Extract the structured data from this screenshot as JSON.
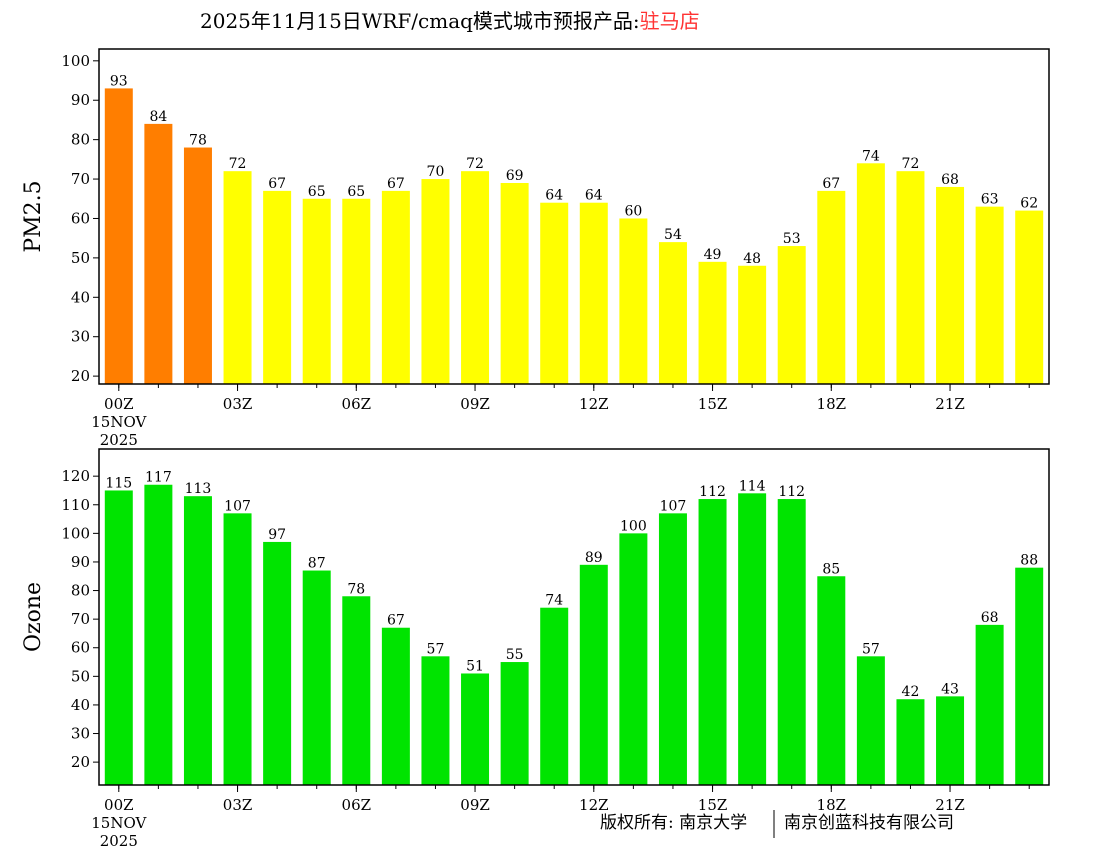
{
  "title": {
    "main": "2025年11月15日WRF/cmaq模式城市预报产品:",
    "city": "驻马店",
    "city_color": "#ff3333"
  },
  "footer": {
    "left": "版权所有: 南京大学",
    "right": "南京创蓝科技有限公司"
  },
  "chart_data": [
    {
      "type": "bar",
      "ylabel": "PM2.5",
      "ylim": [
        18,
        103
      ],
      "yticks": [
        20,
        30,
        40,
        50,
        60,
        70,
        80,
        90,
        100
      ],
      "xtick_labels": [
        "00Z",
        "03Z",
        "06Z",
        "09Z",
        "12Z",
        "15Z",
        "18Z",
        "21Z"
      ],
      "xtick_indices": [
        0,
        3,
        6,
        9,
        12,
        15,
        18,
        21
      ],
      "date_label": [
        "15NOV",
        "2025"
      ],
      "values": [
        93,
        84,
        78,
        72,
        67,
        65,
        65,
        67,
        70,
        72,
        69,
        64,
        64,
        60,
        54,
        49,
        48,
        53,
        67,
        74,
        72,
        68,
        63,
        62
      ],
      "colors": [
        "#ff7e00",
        "#ff7e00",
        "#ff7e00",
        "#ffff00",
        "#ffff00",
        "#ffff00",
        "#ffff00",
        "#ffff00",
        "#ffff00",
        "#ffff00",
        "#ffff00",
        "#ffff00",
        "#ffff00",
        "#ffff00",
        "#ffff00",
        "#ffff00",
        "#ffff00",
        "#ffff00",
        "#ffff00",
        "#ffff00",
        "#ffff00",
        "#ffff00",
        "#ffff00",
        "#ffff00"
      ]
    },
    {
      "type": "bar",
      "ylabel": "Ozone",
      "ylim": [
        12,
        129.5
      ],
      "yticks": [
        20,
        30,
        40,
        50,
        60,
        70,
        80,
        90,
        100,
        110,
        120
      ],
      "xtick_labels": [
        "00Z",
        "03Z",
        "06Z",
        "09Z",
        "12Z",
        "15Z",
        "18Z",
        "21Z"
      ],
      "xtick_indices": [
        0,
        3,
        6,
        9,
        12,
        15,
        18,
        21
      ],
      "date_label": [
        "15NOV",
        "2025"
      ],
      "values": [
        115,
        117,
        113,
        107,
        97,
        87,
        78,
        67,
        57,
        51,
        55,
        74,
        89,
        100,
        107,
        112,
        114,
        112,
        85,
        57,
        42,
        43,
        68,
        88
      ],
      "colors": [
        "#00e400"
      ]
    }
  ]
}
